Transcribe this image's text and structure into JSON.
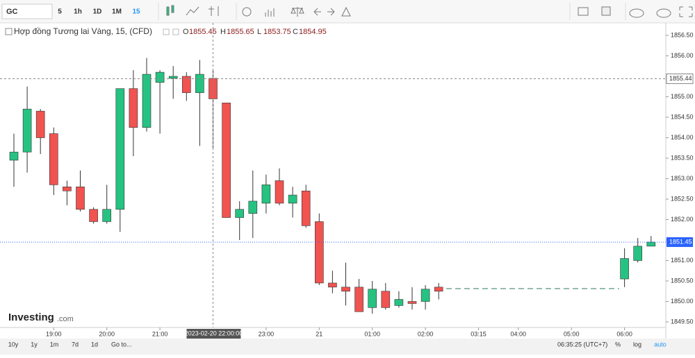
{
  "toolbar": {
    "symbol": "GC",
    "intervals": [
      "5",
      "1h",
      "1D",
      "1M",
      "15"
    ],
    "active_interval": 4
  },
  "chart_data": {
    "type": "candlestick",
    "title": "Hợp đồng Tương lai Vàng, 15, (CFD)",
    "ohlc_labels": [
      "O",
      "H",
      "L",
      "C"
    ],
    "hover_index": 15,
    "categories": [
      null,
      null,
      null,
      "19:00",
      null,
      null,
      null,
      "20:00",
      null,
      null,
      null,
      "21:00",
      null,
      null,
      null,
      null,
      null,
      null,
      null,
      "23:00",
      null,
      null,
      null,
      "21",
      null,
      null,
      null,
      "01:00",
      null,
      null,
      null,
      "02:00",
      null,
      null,
      null,
      "03:15",
      null,
      null,
      "04:00",
      null,
      null,
      null,
      "05:00",
      null,
      null,
      null,
      "06:00",
      null,
      null
    ],
    "open": [
      1853.45,
      1853.65,
      1854.65,
      1854.1,
      1852.8,
      1852.8,
      1852.25,
      1851.95,
      1852.25,
      1855.2,
      1854.25,
      1855.35,
      1855.45,
      1855.5,
      1855.1,
      1855.45,
      1854.85,
      1852.05,
      1852.15,
      1852.4,
      1852.95,
      1852.4,
      1852.7,
      1851.95,
      1850.45,
      1850.35,
      1850.35,
      1849.85,
      1850.25,
      1849.9,
      1850.0,
      1850.0,
      1850.35,
      null,
      null,
      null,
      null,
      null,
      null,
      null,
      null,
      null,
      null,
      null,
      null,
      null,
      1850.55,
      1851.0,
      1851.35
    ],
    "high": [
      1854.1,
      1855.25,
      1854.7,
      1854.25,
      1852.95,
      1853.2,
      1852.3,
      1852.85,
      1855.2,
      1855.65,
      1855.95,
      1855.65,
      1855.75,
      1855.6,
      1855.9,
      1855.65,
      1854.85,
      1852.45,
      1853.2,
      1853.1,
      1853.25,
      1852.8,
      1852.85,
      1852.15,
      1850.75,
      1850.95,
      1850.55,
      1850.5,
      1850.45,
      1850.25,
      1850.35,
      1850.4,
      1850.45,
      null,
      null,
      null,
      null,
      null,
      null,
      null,
      null,
      null,
      null,
      null,
      null,
      null,
      1851.3,
      1851.55,
      1851.6
    ],
    "low": [
      1852.8,
      1853.15,
      1853.6,
      1852.6,
      1852.35,
      1852.2,
      1851.9,
      1851.9,
      1851.7,
      1853.55,
      1854.15,
      1854.1,
      1854.95,
      1854.9,
      1853.8,
      1853.75,
      1852.05,
      1851.5,
      1851.55,
      1852.15,
      1852.35,
      1852.05,
      1851.8,
      1850.4,
      1850.2,
      1849.9,
      1849.75,
      1849.7,
      1849.8,
      1849.85,
      1849.8,
      1849.8,
      1850.05,
      null,
      null,
      null,
      null,
      null,
      null,
      null,
      null,
      null,
      null,
      null,
      null,
      null,
      1850.35,
      1850.95,
      1851.35
    ],
    "close": [
      1853.65,
      1854.7,
      1854.0,
      1852.85,
      1852.7,
      1852.25,
      1851.95,
      1852.25,
      1855.2,
      1854.25,
      1855.55,
      1855.6,
      1855.5,
      1855.1,
      1855.55,
      1854.95,
      1852.05,
      1852.25,
      1852.45,
      1852.85,
      1852.4,
      1852.6,
      1851.85,
      1850.45,
      1850.35,
      1850.25,
      1849.75,
      1850.3,
      1849.85,
      1850.05,
      1849.95,
      1850.3,
      1850.25,
      null,
      null,
      null,
      null,
      null,
      null,
      null,
      null,
      null,
      null,
      null,
      null,
      null,
      1851.05,
      1851.35,
      1851.45
    ],
    "up_color": "#26c281",
    "down_color": "#f05350",
    "ylim": [
      1849.4,
      1856.7
    ],
    "yticks": [
      {
        "value": 1849.5,
        "label": "1849.50"
      },
      {
        "value": 1850,
        "label": "1850.00"
      },
      {
        "value": 1850.5,
        "label": "1850.50"
      },
      {
        "value": 1851,
        "label": "1851.00"
      },
      {
        "value": 1851.5,
        "label": "1851.50"
      },
      {
        "value": 1852,
        "label": "1852.00"
      },
      {
        "value": 1852.5,
        "label": "1852.50"
      },
      {
        "value": 1853,
        "label": "1853.00"
      },
      {
        "value": 1853.5,
        "label": "1853.50"
      },
      {
        "value": 1854,
        "label": "1854.00"
      },
      {
        "value": 1854.5,
        "label": "1854.50"
      },
      {
        "value": 1855,
        "label": "1855.00"
      },
      {
        "value": 1855.5,
        "label": "1855.50"
      },
      {
        "value": 1856,
        "label": "1856.00"
      },
      {
        "value": 1856.5,
        "label": "1856.50"
      }
    ],
    "crosshair_price": 1855.44,
    "last_price": 1851.45,
    "crosshair_time": "2023-02-20 22:00:00"
  },
  "logo": {
    "name": "Investing",
    "suffix": ".com"
  },
  "bottom_bar": {
    "ranges": [
      "10y",
      "1y",
      "1m",
      "7d",
      "1d"
    ],
    "goto": "Go to...",
    "clock": "06:35:25 (UTC+7)",
    "options": [
      "%",
      "log",
      "auto"
    ]
  }
}
